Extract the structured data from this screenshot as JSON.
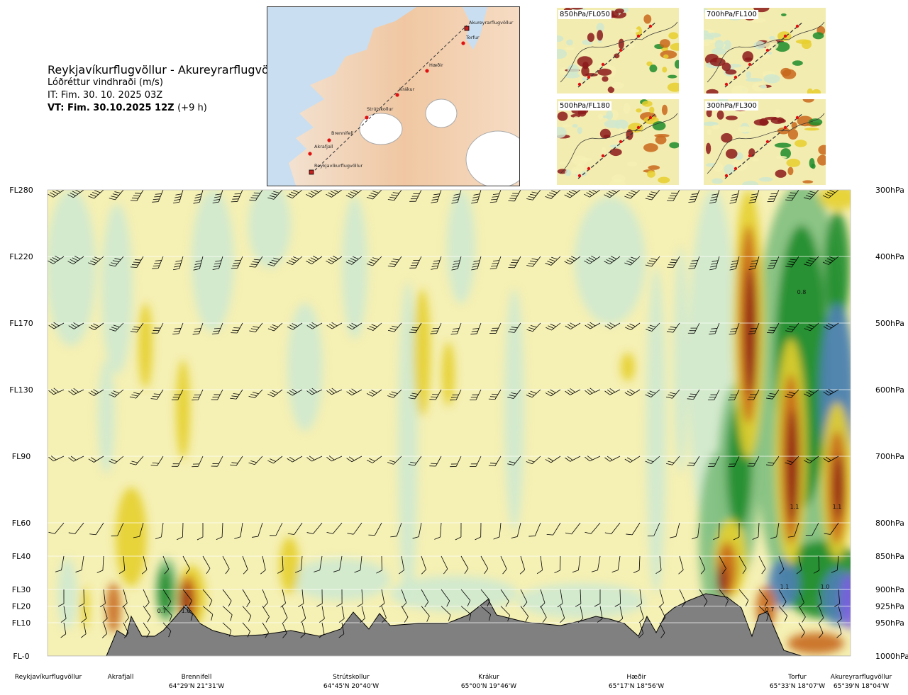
{
  "header": {
    "route_title": "Reykjavíkurflugvöllur - Akureyrarflugvöllur",
    "parameter": "Lóðréttur vindhraði (m/s)",
    "init_time": "IT: Fim. 30. 10. 2025 03Z",
    "valid_time": "VT: Fim. 30.10.2025 12Z",
    "lead_time": "(+9 h)"
  },
  "route_map": {
    "points": [
      {
        "name": "Reykjavíkurflugvöllur"
      },
      {
        "name": "Akrafjall"
      },
      {
        "name": "Brennifell"
      },
      {
        "name": "Strútskollur"
      },
      {
        "name": "Krákur"
      },
      {
        "name": "Hæðir"
      },
      {
        "name": "Torfur"
      },
      {
        "name": "Akureyrarflugvöllur"
      }
    ]
  },
  "insets": [
    {
      "label": "850hPa/FL050"
    },
    {
      "label": "700hPa/FL100"
    },
    {
      "label": "500hPa/FL180"
    },
    {
      "label": "300hPa/FL300"
    }
  ],
  "chart_data": {
    "type": "heatmap",
    "title": "Lóðréttur vindhraði (m/s)",
    "xlabel": "",
    "ylabel": "",
    "y_levels": [
      {
        "fl": "FL280",
        "hpa": "300hPa"
      },
      {
        "fl": "FL220",
        "hpa": "400hPa"
      },
      {
        "fl": "FL170",
        "hpa": "500hPa"
      },
      {
        "fl": "FL130",
        "hpa": "600hPa"
      },
      {
        "fl": "FL90",
        "hpa": "700hPa"
      },
      {
        "fl": "FL60",
        "hpa": "800hPa"
      },
      {
        "fl": "FL40",
        "hpa": "850hPa"
      },
      {
        "fl": "FL30",
        "hpa": "900hPa"
      },
      {
        "fl": "FL20",
        "hpa": "925hPa"
      },
      {
        "fl": "FL10",
        "hpa": "950hPa"
      },
      {
        "fl": "FL-0",
        "hpa": "1000hPa"
      }
    ],
    "ylim_hpa": [
      1000,
      300
    ],
    "x_points": [
      {
        "name": "Reykjavíkurflugvöllur",
        "coord": ""
      },
      {
        "name": "Akrafjall",
        "coord": ""
      },
      {
        "name": "Brennifell",
        "coord": "64°29'N 21°31'W"
      },
      {
        "name": "Strútskollur",
        "coord": "64°45'N 20°40'W"
      },
      {
        "name": "Krákur",
        "coord": "65°00'N 19°46'W"
      },
      {
        "name": "Hæðir",
        "coord": "65°17'N 18°56'W"
      },
      {
        "name": "Torfur",
        "coord": "65°33'N 18°07'W"
      },
      {
        "name": "Akureyrarflugvöllur",
        "coord": "65°39'N 18°04'W"
      }
    ],
    "annotations": [
      "0.8",
      "1.1",
      "1.1",
      "1.1",
      "1.0",
      "0.7",
      "1.0",
      "0.7"
    ],
    "colors": {
      "strong_down": "#8b1a1a",
      "down": "#c8691c",
      "weak_down": "#e6cf2e",
      "near_zero_neg": "#f5f0b4",
      "near_zero_pos": "#fbfbe6",
      "weak_up": "#cfe9cf",
      "up": "#7fbf7f",
      "strong_up": "#1d8c2c",
      "very_strong_up": "#4d80b4",
      "extreme_up": "#7b5fe0",
      "terrain": "#808080"
    }
  }
}
